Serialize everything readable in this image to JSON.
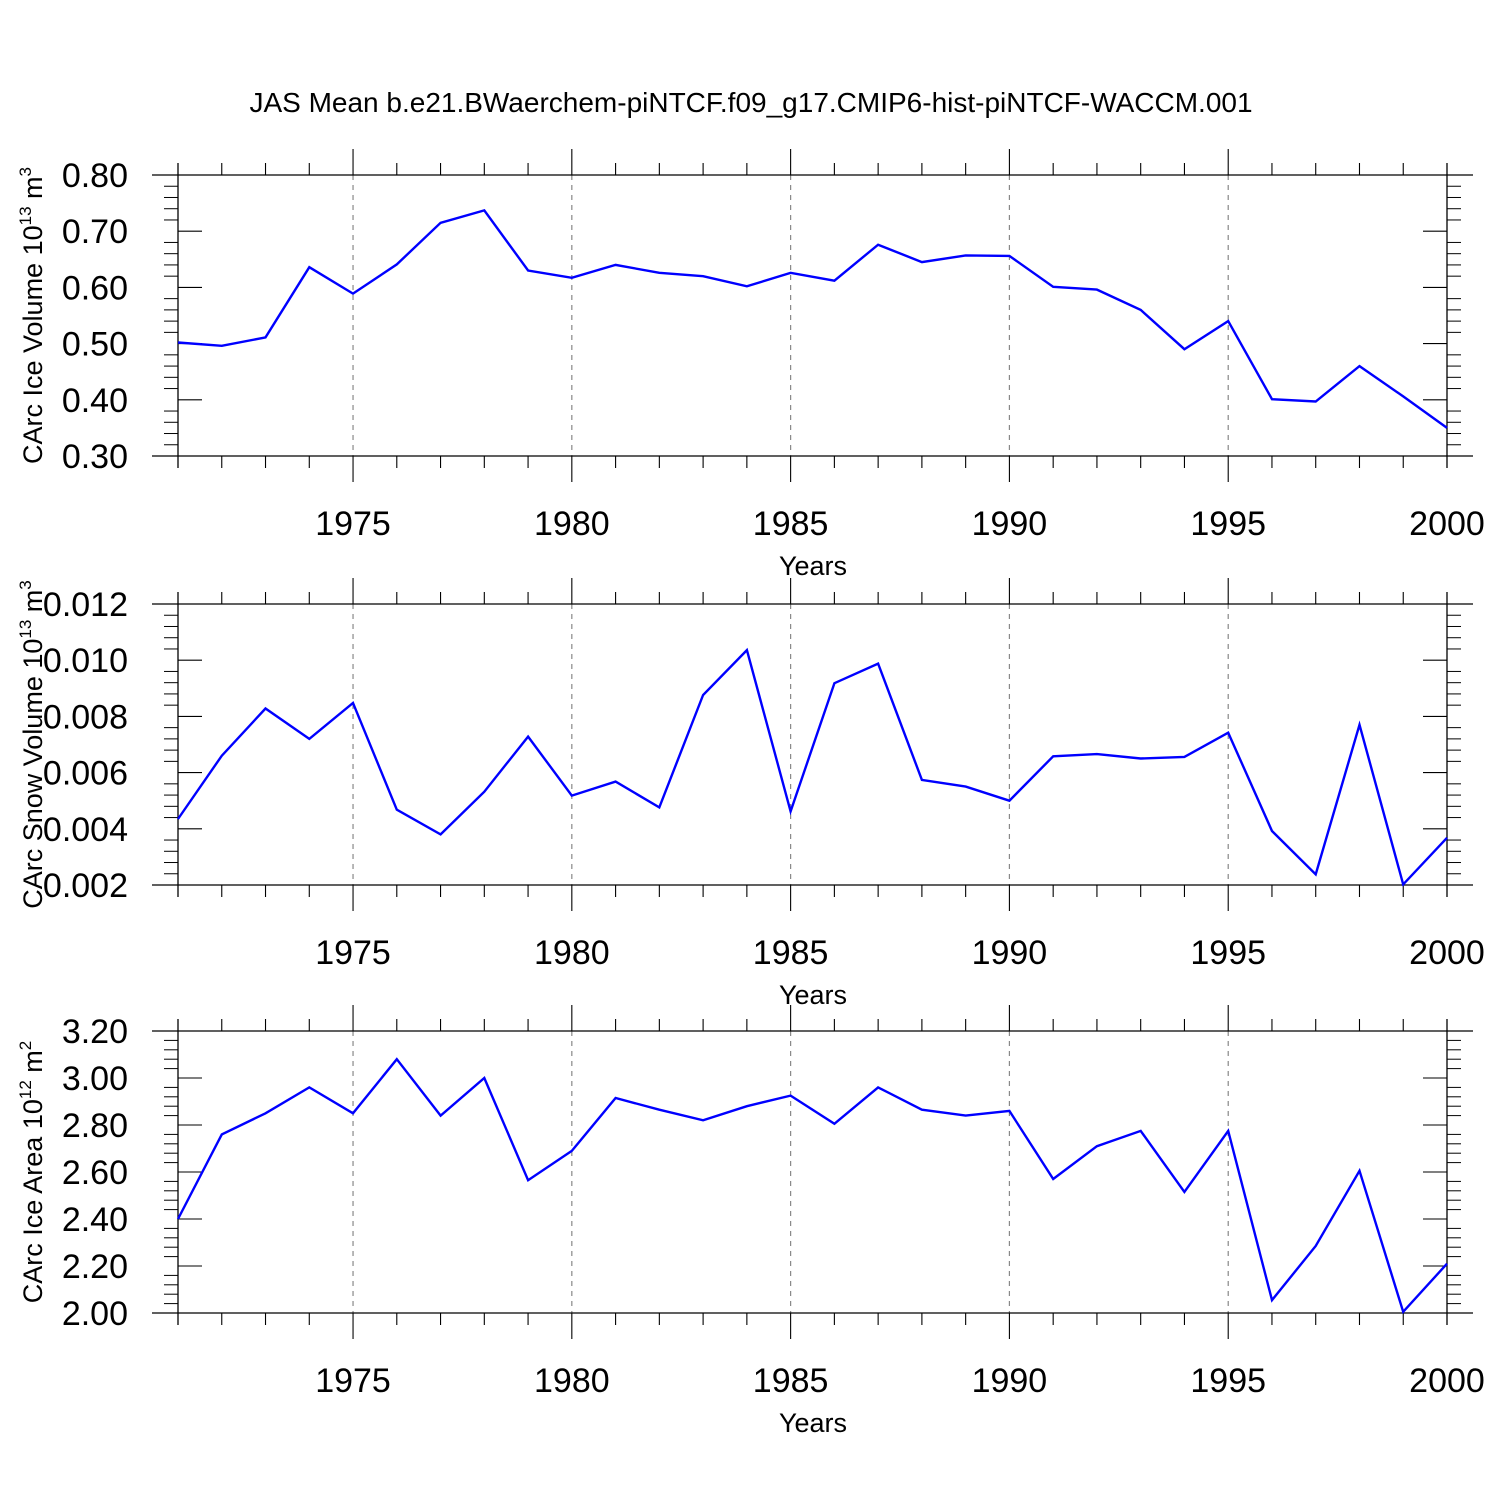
{
  "figure": {
    "title": "JAS Mean b.e21.BWaerchem-piNTCF.f09_g17.CMIP6-hist-piNTCF-WACCM.001",
    "line_color": "#0000ff",
    "grid_color": "#888888"
  },
  "chart_data": [
    {
      "type": "line",
      "ylabel": {
        "base": "CArc Ice Volume 10",
        "exp": "13",
        "unit": " m",
        "unit_exp": "3"
      },
      "xlabel": "Years",
      "xlim": [
        1971,
        2000
      ],
      "xticks": [
        1975,
        1980,
        1985,
        1990,
        1995,
        2000
      ],
      "xtick_labels": [
        "1975",
        "1980",
        "1985",
        "1990",
        "1995",
        "2000"
      ],
      "ylim": [
        0.3,
        0.8
      ],
      "yticks": [
        0.3,
        0.4,
        0.5,
        0.6,
        0.7,
        0.8
      ],
      "ytick_labels": [
        "0.30",
        "0.40",
        "0.50",
        "0.60",
        "0.70",
        "0.80"
      ],
      "grid": "vertical dashed at major x ticks",
      "x": [
        1971,
        1972,
        1973,
        1974,
        1975,
        1976,
        1977,
        1978,
        1979,
        1980,
        1981,
        1982,
        1983,
        1984,
        1985,
        1986,
        1987,
        1988,
        1989,
        1990,
        1991,
        1992,
        1993,
        1994,
        1995,
        1996,
        1997,
        1998,
        1999,
        2000
      ],
      "values": [
        0.502,
        0.496,
        0.511,
        0.636,
        0.589,
        0.641,
        0.715,
        0.737,
        0.63,
        0.617,
        0.64,
        0.626,
        0.62,
        0.602,
        0.626,
        0.612,
        0.676,
        0.645,
        0.657,
        0.656,
        0.601,
        0.596,
        0.56,
        0.49,
        0.54,
        0.401,
        0.397,
        0.46,
        0.406,
        0.35
      ]
    },
    {
      "type": "line",
      "ylabel": {
        "base": "CArc Snow Volume 10",
        "exp": "13",
        "unit": " m",
        "unit_exp": "3"
      },
      "xlabel": "Years",
      "xlim": [
        1971,
        2000
      ],
      "xticks": [
        1975,
        1980,
        1985,
        1990,
        1995,
        2000
      ],
      "xtick_labels": [
        "1975",
        "1980",
        "1985",
        "1990",
        "1995",
        "2000"
      ],
      "ylim": [
        0.002,
        0.012
      ],
      "yticks": [
        0.002,
        0.004,
        0.006,
        0.008,
        0.01,
        0.012
      ],
      "ytick_labels": [
        "0.002",
        "0.004",
        "0.006",
        "0.008",
        "0.010",
        "0.012"
      ],
      "grid": "vertical dashed at major x ticks",
      "x": [
        1971,
        1972,
        1973,
        1974,
        1975,
        1976,
        1977,
        1978,
        1979,
        1980,
        1981,
        1982,
        1983,
        1984,
        1985,
        1986,
        1987,
        1988,
        1989,
        1990,
        1991,
        1992,
        1993,
        1994,
        1995,
        1996,
        1997,
        1998,
        1999,
        2000
      ],
      "values": [
        0.00435,
        0.0066,
        0.00828,
        0.0072,
        0.00848,
        0.00468,
        0.0038,
        0.00532,
        0.00728,
        0.00518,
        0.00568,
        0.00476,
        0.00876,
        0.01036,
        0.00462,
        0.00918,
        0.00988,
        0.00574,
        0.0055,
        0.005,
        0.00658,
        0.00666,
        0.0065,
        0.00656,
        0.00742,
        0.00392,
        0.00238,
        0.0077,
        0.00202,
        0.00368
      ]
    },
    {
      "type": "line",
      "ylabel": {
        "base": "CArc Ice Area 10",
        "exp": "12",
        "unit": " m",
        "unit_exp": "2"
      },
      "xlabel": "Years",
      "xlim": [
        1971,
        2000
      ],
      "xticks": [
        1975,
        1980,
        1985,
        1990,
        1995,
        2000
      ],
      "xtick_labels": [
        "1975",
        "1980",
        "1985",
        "1990",
        "1995",
        "2000"
      ],
      "ylim": [
        2.0,
        3.2
      ],
      "yticks": [
        2.0,
        2.2,
        2.4,
        2.6,
        2.8,
        3.0,
        3.2
      ],
      "ytick_labels": [
        "2.00",
        "2.20",
        "2.40",
        "2.60",
        "2.80",
        "3.00",
        "3.20"
      ],
      "grid": "vertical dashed at major x ticks",
      "x": [
        1971,
        1972,
        1973,
        1974,
        1975,
        1976,
        1977,
        1978,
        1979,
        1980,
        1981,
        1982,
        1983,
        1984,
        1985,
        1986,
        1987,
        1988,
        1989,
        1990,
        1991,
        1992,
        1993,
        1994,
        1995,
        1996,
        1997,
        1998,
        1999,
        2000
      ],
      "values": [
        2.4,
        2.76,
        2.85,
        2.96,
        2.85,
        3.08,
        2.84,
        3.0,
        2.565,
        2.69,
        2.915,
        2.865,
        2.82,
        2.88,
        2.925,
        2.805,
        2.96,
        2.865,
        2.84,
        2.86,
        2.57,
        2.71,
        2.775,
        2.515,
        2.775,
        2.055,
        2.285,
        2.605,
        2.005,
        2.21
      ]
    }
  ]
}
